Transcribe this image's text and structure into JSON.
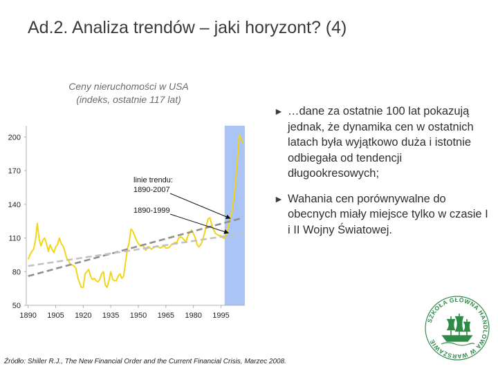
{
  "slide": {
    "title": "Ad.2. Analiza trendów – jaki horyzont? (4)",
    "source": "Źródło: Shiller R.J., The New Financial Order and the Current Financial Crisis, Marzec 2008."
  },
  "chart_caption": {
    "line1": "Ceny nieruchomości w USA",
    "line2": "(indeks, ostatnie 117 lat)"
  },
  "bullets": [
    {
      "marker": "►",
      "text": "…dane za ostatnie 100 lat pokazują jednak, że dynamika cen w ostatnich latach była wyjątkowo duża i istotnie odbiegała od tendencji długookresowych;"
    },
    {
      "marker": "►",
      "text": "Wahania cen porównywalne do obecnych miały miejsce tylko w czasie I i II Wojny Światowej."
    }
  ],
  "logo": {
    "text": "SZKOŁA GŁÓWNA HANDLOWA W WARSZAWIE",
    "color": "#2e8a47"
  },
  "chart_data": {
    "type": "line",
    "title": "",
    "xlabel": "",
    "ylabel": "",
    "xlim": [
      1889,
      2008
    ],
    "ylim": [
      50,
      210
    ],
    "x_ticks": [
      "1890",
      "1905",
      "1920",
      "1935",
      "1950",
      "1965",
      "1980",
      "1995"
    ],
    "y_ticks": [
      "50",
      "80",
      "110",
      "140",
      "170",
      "200"
    ],
    "shaded_range": [
      1997,
      2008
    ],
    "colors": {
      "index": "#f2d516",
      "trend_1890_2007": "#8f8f8f",
      "trend_1890_1999": "#c2c2c2",
      "shade": "#a9c4f5",
      "axis": "#b0b0b0"
    },
    "series": [
      {
        "style": "solid",
        "x": [
          1890,
          1891,
          1892,
          1893,
          1894,
          1895,
          1896,
          1897,
          1898,
          1899,
          1900,
          1901,
          1902,
          1903,
          1904,
          1905,
          1906,
          1907,
          1908,
          1909,
          1910,
          1911,
          1912,
          1913,
          1914,
          1915,
          1916,
          1917,
          1918,
          1919,
          1920,
          1921,
          1922,
          1923,
          1924,
          1925,
          1926,
          1927,
          1928,
          1929,
          1930,
          1931,
          1932,
          1933,
          1934,
          1935,
          1936,
          1937,
          1938,
          1939,
          1940,
          1941,
          1942,
          1943,
          1944,
          1945,
          1946,
          1947,
          1948,
          1949,
          1950,
          1951,
          1952,
          1953,
          1954,
          1955,
          1956,
          1957,
          1958,
          1959,
          1960,
          1961,
          1962,
          1963,
          1964,
          1965,
          1966,
          1967,
          1968,
          1969,
          1970,
          1971,
          1972,
          1973,
          1974,
          1975,
          1976,
          1977,
          1978,
          1979,
          1980,
          1981,
          1982,
          1983,
          1984,
          1985,
          1986,
          1987,
          1988,
          1989,
          1990,
          1991,
          1992,
          1993,
          1994,
          1995,
          1996,
          1997,
          1998,
          1999,
          2000,
          2001,
          2002,
          2003,
          2004,
          2005,
          2006,
          2007
        ],
        "y": [
          91,
          95,
          98,
          100,
          108,
          123,
          109,
          103,
          108,
          110,
          105,
          98,
          104,
          100,
          97,
          102,
          104,
          110,
          105,
          103,
          98,
          92,
          90,
          86,
          86,
          85,
          83,
          75,
          70,
          66,
          66,
          78,
          80,
          82,
          76,
          73,
          74,
          72,
          71,
          73,
          78,
          80,
          68,
          66,
          72,
          80,
          73,
          72,
          72,
          76,
          78,
          74,
          76,
          88,
          100,
          106,
          118,
          116,
          112,
          108,
          105,
          103,
          104,
          102,
          99,
          102,
          102,
          100,
          101,
          102,
          103,
          102,
          101,
          102,
          103,
          101,
          101,
          102,
          104,
          105,
          106,
          106,
          110,
          111,
          110,
          108,
          107,
          112,
          115,
          117,
          114,
          110,
          104,
          102,
          104,
          108,
          114,
          121,
          127,
          128,
          122,
          117,
          114,
          113,
          112,
          112,
          110,
          110,
          113,
          120,
          127,
          133,
          145,
          160,
          180,
          202,
          198,
          194
        ]
      },
      {
        "name": "1890-2007",
        "style": "dashed",
        "x": [
          1890,
          2007
        ],
        "y": [
          76,
          128
        ]
      },
      {
        "name": "1890-1999",
        "style": "dashed",
        "x": [
          1890,
          2007
        ],
        "y": [
          85,
          114
        ]
      }
    ],
    "annotations": {
      "label_a_line1": "linie trendu:",
      "label_a_line2": "1890-2007",
      "label_b": "1890-1999"
    }
  }
}
